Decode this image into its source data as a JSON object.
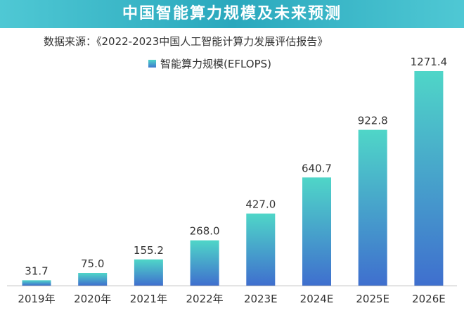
{
  "chart_data": {
    "type": "bar",
    "title": "中国智能算力规模及未来预测",
    "subtitle": "数据来源：《2022-2023中国人工智能计算力发展评估报告》",
    "categories": [
      "2019年",
      "2020年",
      "2021年",
      "2022年",
      "2023E",
      "2024E",
      "2025E",
      "2026E"
    ],
    "series": [
      {
        "name": "智能算力规模(EFLOPS)",
        "values": [
          31.7,
          75.0,
          155.2,
          268.0,
          427.0,
          640.7,
          922.8,
          1271.4
        ],
        "labels": [
          "31.7",
          "75.0",
          "155.2",
          "268.0",
          "427.0",
          "640.7",
          "922.8",
          "1271.4"
        ]
      }
    ],
    "xlabel": "",
    "ylabel": "",
    "ylim": [
      0,
      1271.4
    ],
    "grid": false,
    "legend_position": "top-left",
    "colors": {
      "bar_top": "#4fd6c8",
      "bar_bottom": "#3f6fce",
      "banner": "#2aa8bd",
      "axis": "#bbbbbb"
    }
  }
}
